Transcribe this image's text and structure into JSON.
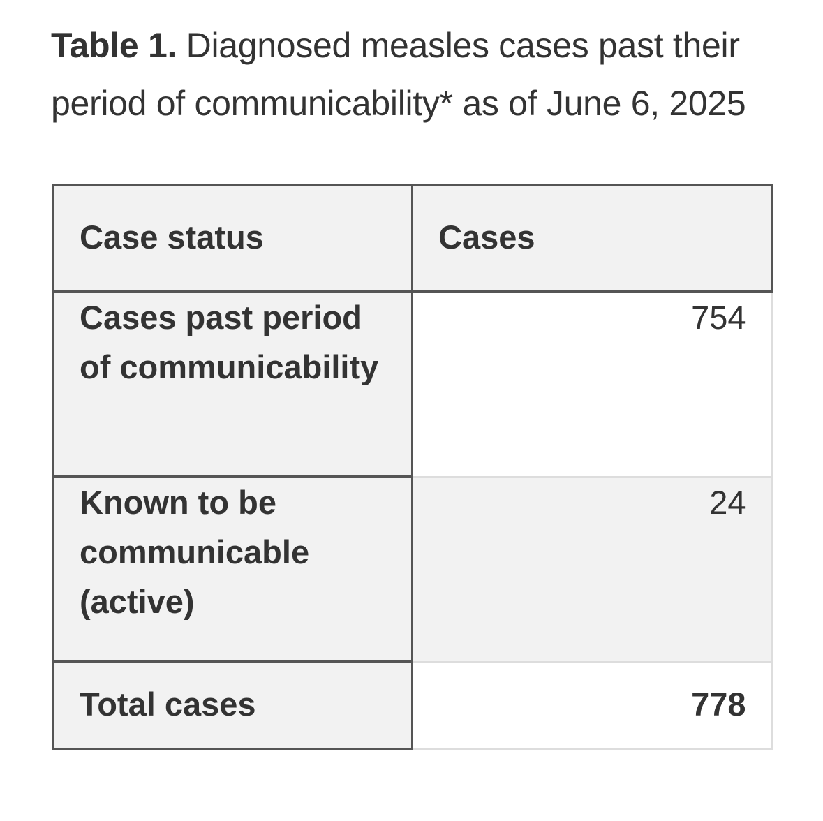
{
  "caption": {
    "label": "Table 1.",
    "text": " Diagnosed measles cases past their period of communicability* as of June 6, 2025"
  },
  "table": {
    "headers": [
      "Case status",
      "Cases"
    ],
    "rows": [
      {
        "status": "Cases past period of communicability",
        "cases": "754"
      },
      {
        "status": "Known to be communicable (active)",
        "cases": "24"
      },
      {
        "status": "Total cases",
        "cases": "778"
      }
    ]
  },
  "colors": {
    "text": "#333333",
    "header_fill": "#f2f2f2",
    "border_dark": "#555555",
    "border_light": "#dddddd"
  }
}
